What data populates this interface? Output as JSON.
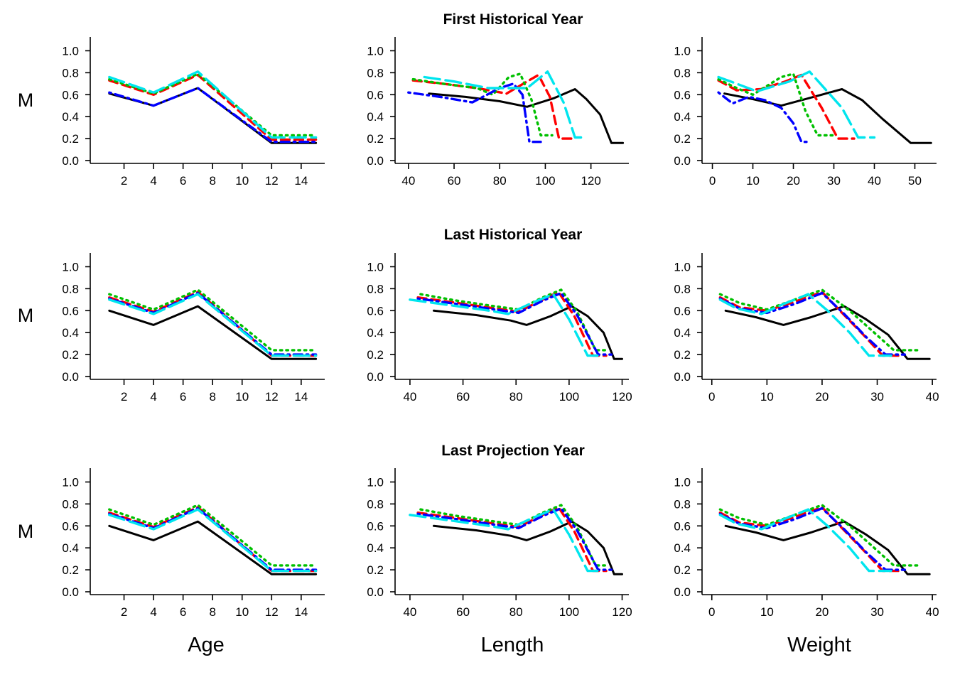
{
  "figure": {
    "row_titles": [
      "First Historical Year",
      "Last Historical Year",
      "Last Projection Year"
    ],
    "y_label": "M",
    "x_labels": [
      "Age",
      "Length",
      "Weight"
    ]
  },
  "series_styles": [
    {
      "color": "#000000",
      "dash": "solid"
    },
    {
      "color": "#ff0000",
      "dash": "dashed"
    },
    {
      "color": "#00c000",
      "dash": "dotted"
    },
    {
      "color": "#0000ff",
      "dash": "dotdash"
    },
    {
      "color": "#00e5ee",
      "dash": "longdash"
    }
  ],
  "chart_data": [
    {
      "type": "line",
      "panel": "First Historical Year - Age",
      "row": 0,
      "col": 0,
      "xlabel": "",
      "ylabel": "M",
      "xlim": [
        0,
        15.5
      ],
      "ylim": [
        0,
        1.1
      ],
      "xticks": [
        2,
        4,
        6,
        8,
        10,
        12,
        14
      ],
      "yticks": [
        0.0,
        0.2,
        0.4,
        0.6,
        0.8,
        1.0
      ],
      "series": [
        {
          "x": [
            1,
            4,
            7,
            12,
            15
          ],
          "y": [
            0.61,
            0.5,
            0.66,
            0.16,
            0.16
          ]
        },
        {
          "x": [
            1,
            4,
            7,
            12,
            15
          ],
          "y": [
            0.73,
            0.6,
            0.78,
            0.19,
            0.19
          ]
        },
        {
          "x": [
            1,
            4,
            7,
            12,
            15
          ],
          "y": [
            0.74,
            0.61,
            0.79,
            0.23,
            0.23
          ]
        },
        {
          "x": [
            1,
            4,
            7,
            12,
            15
          ],
          "y": [
            0.62,
            0.5,
            0.66,
            0.17,
            0.17
          ]
        },
        {
          "x": [
            1,
            4,
            7,
            12,
            15
          ],
          "y": [
            0.76,
            0.62,
            0.81,
            0.21,
            0.21
          ]
        }
      ]
    },
    {
      "type": "line",
      "panel": "First Historical Year - Length",
      "row": 0,
      "col": 1,
      "xlabel": "",
      "ylabel": "",
      "xlim": [
        36,
        136
      ],
      "ylim": [
        0,
        1.1
      ],
      "xticks": [
        40,
        60,
        80,
        100,
        120
      ],
      "yticks": [
        0.0,
        0.2,
        0.4,
        0.6,
        0.8,
        1.0
      ],
      "series": [
        {
          "x": [
            49,
            65,
            80,
            92,
            104,
            113,
            118,
            124,
            129,
            134
          ],
          "y": [
            0.61,
            0.58,
            0.54,
            0.49,
            0.57,
            0.65,
            0.56,
            0.42,
            0.16,
            0.16
          ]
        },
        {
          "x": [
            42,
            55,
            70,
            83,
            92,
            97,
            102,
            106,
            112
          ],
          "y": [
            0.73,
            0.7,
            0.66,
            0.61,
            0.72,
            0.78,
            0.58,
            0.2,
            0.2
          ]
        },
        {
          "x": [
            42,
            55,
            70,
            77,
            84,
            89,
            94,
            98,
            103
          ],
          "y": [
            0.74,
            0.7,
            0.66,
            0.6,
            0.76,
            0.79,
            0.55,
            0.23,
            0.23
          ]
        },
        {
          "x": [
            40,
            54,
            68,
            80,
            86,
            90,
            93,
            98
          ],
          "y": [
            0.62,
            0.58,
            0.53,
            0.66,
            0.7,
            0.6,
            0.17,
            0.17
          ]
        },
        {
          "x": [
            47,
            60,
            75,
            92,
            101,
            108,
            113,
            118
          ],
          "y": [
            0.76,
            0.72,
            0.66,
            0.66,
            0.81,
            0.53,
            0.21,
            0.21
          ]
        }
      ]
    },
    {
      "type": "line",
      "panel": "First Historical Year - Weight",
      "row": 0,
      "col": 2,
      "xlabel": "",
      "ylabel": "",
      "xlim": [
        -1.5,
        55
      ],
      "ylim": [
        0,
        1.1
      ],
      "xticks": [
        0,
        10,
        20,
        30,
        40,
        50
      ],
      "yticks": [
        0.0,
        0.2,
        0.4,
        0.6,
        0.8,
        1.0
      ],
      "series": [
        {
          "x": [
            3,
            10,
            17,
            24,
            32,
            37,
            42,
            49,
            54
          ],
          "y": [
            0.61,
            0.56,
            0.5,
            0.57,
            0.65,
            0.55,
            0.38,
            0.16,
            0.16
          ]
        },
        {
          "x": [
            1.5,
            6,
            12,
            18,
            22,
            27,
            31,
            35
          ],
          "y": [
            0.73,
            0.64,
            0.65,
            0.72,
            0.78,
            0.48,
            0.2,
            0.2
          ]
        },
        {
          "x": [
            1.5,
            6,
            10,
            17,
            20,
            23,
            26,
            30
          ],
          "y": [
            0.74,
            0.66,
            0.6,
            0.76,
            0.79,
            0.45,
            0.23,
            0.23
          ]
        },
        {
          "x": [
            1.5,
            5,
            9,
            13,
            17,
            20,
            22,
            24
          ],
          "y": [
            0.62,
            0.52,
            0.58,
            0.55,
            0.48,
            0.34,
            0.17,
            0.17
          ]
        },
        {
          "x": [
            1.5,
            6,
            11,
            19,
            24,
            32,
            36,
            40
          ],
          "y": [
            0.76,
            0.7,
            0.63,
            0.72,
            0.81,
            0.48,
            0.21,
            0.21
          ]
        }
      ]
    },
    {
      "type": "line",
      "panel": "Last Historical Year - Age",
      "row": 1,
      "col": 0,
      "xlabel": "",
      "ylabel": "M",
      "xlim": [
        0,
        15.5
      ],
      "ylim": [
        0,
        1.1
      ],
      "xticks": [
        2,
        4,
        6,
        8,
        10,
        12,
        14
      ],
      "yticks": [
        0.0,
        0.2,
        0.4,
        0.6,
        0.8,
        1.0
      ],
      "series": [
        {
          "x": [
            1,
            4,
            7,
            12,
            15
          ],
          "y": [
            0.6,
            0.47,
            0.64,
            0.16,
            0.16
          ]
        },
        {
          "x": [
            1,
            4,
            7,
            12,
            15
          ],
          "y": [
            0.72,
            0.59,
            0.77,
            0.19,
            0.19
          ]
        },
        {
          "x": [
            1,
            4,
            7,
            12,
            15
          ],
          "y": [
            0.75,
            0.61,
            0.79,
            0.24,
            0.24
          ]
        },
        {
          "x": [
            1,
            4,
            7,
            12,
            15
          ],
          "y": [
            0.71,
            0.58,
            0.76,
            0.2,
            0.2
          ]
        },
        {
          "x": [
            1,
            4,
            7,
            12,
            15
          ],
          "y": [
            0.7,
            0.57,
            0.75,
            0.19,
            0.19
          ]
        }
      ]
    },
    {
      "type": "line",
      "panel": "Last Historical Year - Length",
      "row": 1,
      "col": 1,
      "xlabel": "",
      "ylabel": "",
      "xlim": [
        36,
        122
      ],
      "ylim": [
        0,
        1.1
      ],
      "xticks": [
        40,
        60,
        80,
        100,
        120
      ],
      "yticks": [
        0.0,
        0.2,
        0.4,
        0.6,
        0.8,
        1.0
      ],
      "series": [
        {
          "x": [
            49,
            65,
            78,
            84,
            93,
            101,
            107,
            113,
            117,
            120
          ],
          "y": [
            0.6,
            0.56,
            0.51,
            0.47,
            0.55,
            0.64,
            0.55,
            0.4,
            0.16,
            0.16
          ]
        },
        {
          "x": [
            43,
            58,
            72,
            81,
            90,
            96,
            102,
            109,
            114
          ],
          "y": [
            0.72,
            0.67,
            0.62,
            0.59,
            0.7,
            0.77,
            0.55,
            0.19,
            0.19
          ]
        },
        {
          "x": [
            44,
            58,
            72,
            81,
            90,
            97,
            103,
            110,
            115
          ],
          "y": [
            0.75,
            0.69,
            0.64,
            0.61,
            0.72,
            0.79,
            0.59,
            0.24,
            0.24
          ]
        },
        {
          "x": [
            43,
            58,
            72,
            81,
            90,
            97,
            103,
            111,
            116
          ],
          "y": [
            0.71,
            0.66,
            0.61,
            0.58,
            0.69,
            0.76,
            0.56,
            0.2,
            0.2
          ]
        },
        {
          "x": [
            40,
            55,
            70,
            77,
            86,
            94,
            100,
            107,
            112
          ],
          "y": [
            0.7,
            0.65,
            0.6,
            0.57,
            0.67,
            0.75,
            0.52,
            0.19,
            0.19
          ]
        }
      ]
    },
    {
      "type": "line",
      "panel": "Last Historical Year - Weight",
      "row": 1,
      "col": 2,
      "xlabel": "",
      "ylabel": "",
      "xlim": [
        -1,
        40.5
      ],
      "ylim": [
        0,
        1.1
      ],
      "xticks": [
        0,
        10,
        20,
        30,
        40
      ],
      "yticks": [
        0.0,
        0.2,
        0.4,
        0.6,
        0.8,
        1.0
      ],
      "series": [
        {
          "x": [
            2.5,
            8,
            13,
            18,
            24,
            28,
            32,
            35.5,
            39.5
          ],
          "y": [
            0.6,
            0.54,
            0.47,
            0.54,
            0.64,
            0.52,
            0.38,
            0.16,
            0.16
          ]
        },
        {
          "x": [
            1.5,
            5,
            10,
            15,
            20,
            24,
            27.5,
            31,
            34
          ],
          "y": [
            0.72,
            0.63,
            0.6,
            0.68,
            0.77,
            0.56,
            0.38,
            0.19,
            0.19
          ]
        },
        {
          "x": [
            1.5,
            5,
            10,
            15,
            20,
            25,
            29,
            33,
            37.5
          ],
          "y": [
            0.75,
            0.67,
            0.61,
            0.7,
            0.79,
            0.6,
            0.42,
            0.24,
            0.24
          ]
        },
        {
          "x": [
            1.5,
            5,
            10,
            15,
            20,
            24,
            28,
            31.5,
            35
          ],
          "y": [
            0.71,
            0.62,
            0.58,
            0.66,
            0.76,
            0.57,
            0.36,
            0.2,
            0.2
          ]
        },
        {
          "x": [
            1.5,
            4.5,
            9,
            13,
            17.5,
            21,
            25,
            28.5,
            32.5
          ],
          "y": [
            0.7,
            0.62,
            0.57,
            0.66,
            0.75,
            0.6,
            0.4,
            0.19,
            0.19
          ]
        }
      ]
    },
    {
      "type": "line",
      "panel": "Last Projection Year - Age",
      "row": 2,
      "col": 0,
      "xlabel": "Age",
      "ylabel": "M",
      "xlim": [
        0,
        15.5
      ],
      "ylim": [
        0,
        1.1
      ],
      "xticks": [
        2,
        4,
        6,
        8,
        10,
        12,
        14
      ],
      "yticks": [
        0.0,
        0.2,
        0.4,
        0.6,
        0.8,
        1.0
      ],
      "series": [
        {
          "x": [
            1,
            4,
            7,
            12,
            15
          ],
          "y": [
            0.6,
            0.47,
            0.64,
            0.16,
            0.16
          ]
        },
        {
          "x": [
            1,
            4,
            7,
            12,
            15
          ],
          "y": [
            0.72,
            0.59,
            0.77,
            0.19,
            0.19
          ]
        },
        {
          "x": [
            1,
            4,
            7,
            12,
            15
          ],
          "y": [
            0.75,
            0.61,
            0.79,
            0.24,
            0.24
          ]
        },
        {
          "x": [
            1,
            4,
            7,
            12,
            15
          ],
          "y": [
            0.71,
            0.58,
            0.76,
            0.2,
            0.2
          ]
        },
        {
          "x": [
            1,
            4,
            7,
            12,
            15
          ],
          "y": [
            0.7,
            0.57,
            0.75,
            0.19,
            0.19
          ]
        }
      ]
    },
    {
      "type": "line",
      "panel": "Last Projection Year - Length",
      "row": 2,
      "col": 1,
      "xlabel": "Length",
      "ylabel": "",
      "xlim": [
        36,
        122
      ],
      "ylim": [
        0,
        1.1
      ],
      "xticks": [
        40,
        60,
        80,
        100,
        120
      ],
      "yticks": [
        0.0,
        0.2,
        0.4,
        0.6,
        0.8,
        1.0
      ],
      "series": [
        {
          "x": [
            49,
            65,
            78,
            84,
            93,
            101,
            107,
            113,
            117,
            120
          ],
          "y": [
            0.6,
            0.56,
            0.51,
            0.47,
            0.55,
            0.64,
            0.55,
            0.4,
            0.16,
            0.16
          ]
        },
        {
          "x": [
            43,
            58,
            72,
            81,
            90,
            96,
            102,
            109,
            114
          ],
          "y": [
            0.72,
            0.67,
            0.62,
            0.59,
            0.7,
            0.77,
            0.55,
            0.19,
            0.19
          ]
        },
        {
          "x": [
            44,
            58,
            72,
            81,
            90,
            97,
            103,
            110,
            115
          ],
          "y": [
            0.75,
            0.69,
            0.64,
            0.61,
            0.72,
            0.79,
            0.59,
            0.24,
            0.24
          ]
        },
        {
          "x": [
            43,
            58,
            72,
            81,
            90,
            97,
            103,
            111,
            116
          ],
          "y": [
            0.71,
            0.66,
            0.61,
            0.58,
            0.69,
            0.76,
            0.56,
            0.2,
            0.2
          ]
        },
        {
          "x": [
            40,
            55,
            70,
            77,
            86,
            94,
            100,
            107,
            112
          ],
          "y": [
            0.7,
            0.65,
            0.6,
            0.57,
            0.67,
            0.75,
            0.52,
            0.19,
            0.19
          ]
        }
      ]
    },
    {
      "type": "line",
      "panel": "Last Projection Year - Weight",
      "row": 2,
      "col": 2,
      "xlabel": "Weight",
      "ylabel": "",
      "xlim": [
        -1,
        40.5
      ],
      "ylim": [
        0,
        1.1
      ],
      "xticks": [
        0,
        10,
        20,
        30,
        40
      ],
      "yticks": [
        0.0,
        0.2,
        0.4,
        0.6,
        0.8,
        1.0
      ],
      "series": [
        {
          "x": [
            2.5,
            8,
            13,
            18,
            24,
            28,
            32,
            35.5,
            39.5
          ],
          "y": [
            0.6,
            0.54,
            0.47,
            0.54,
            0.64,
            0.52,
            0.38,
            0.16,
            0.16
          ]
        },
        {
          "x": [
            1.5,
            5,
            10,
            15,
            20,
            24,
            27.5,
            31,
            34
          ],
          "y": [
            0.72,
            0.63,
            0.6,
            0.68,
            0.77,
            0.56,
            0.38,
            0.19,
            0.19
          ]
        },
        {
          "x": [
            1.5,
            5,
            10,
            15,
            20,
            25,
            29,
            33,
            37.5
          ],
          "y": [
            0.75,
            0.67,
            0.61,
            0.7,
            0.79,
            0.6,
            0.42,
            0.24,
            0.24
          ]
        },
        {
          "x": [
            1.5,
            5,
            10,
            15,
            20,
            24,
            28,
            31.5,
            35
          ],
          "y": [
            0.71,
            0.62,
            0.58,
            0.66,
            0.76,
            0.57,
            0.36,
            0.2,
            0.2
          ]
        },
        {
          "x": [
            1.5,
            4.5,
            9,
            13,
            17.5,
            21,
            25,
            28.5,
            32.5
          ],
          "y": [
            0.7,
            0.62,
            0.57,
            0.66,
            0.75,
            0.6,
            0.4,
            0.19,
            0.19
          ]
        }
      ]
    }
  ]
}
